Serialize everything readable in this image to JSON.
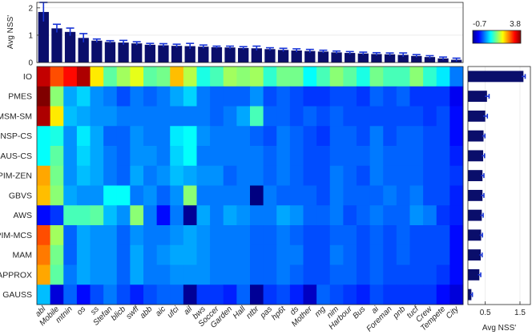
{
  "chart_data": [
    {
      "type": "bar",
      "ylabel": "Avg NSS'",
      "ylim": [
        0,
        2.2
      ],
      "yticks": [
        0,
        1,
        2
      ],
      "grid": true,
      "categories": [
        "abl",
        "Mobile",
        "mtnin",
        "os",
        "ss",
        "Stefan",
        "blicb",
        "swff",
        "abb",
        "aic",
        "ufci",
        "ail",
        "bws",
        "Soccer",
        "Garden",
        "Hall",
        "ntbr",
        "pas",
        "hp6t",
        "ds",
        "Mother",
        "mg",
        "nim",
        "Harbour",
        "Bus",
        "ai",
        "Foreman",
        "pnb",
        "tucf",
        "Crew",
        "Tempete",
        "City"
      ],
      "values": [
        1.85,
        1.25,
        1.12,
        0.9,
        0.8,
        0.75,
        0.73,
        0.7,
        0.65,
        0.63,
        0.61,
        0.6,
        0.58,
        0.56,
        0.55,
        0.53,
        0.52,
        0.49,
        0.46,
        0.44,
        0.42,
        0.4,
        0.37,
        0.35,
        0.33,
        0.31,
        0.3,
        0.28,
        0.24,
        0.2,
        0.15,
        0.1
      ],
      "errors": [
        0.35,
        0.15,
        0.14,
        0.16,
        0.06,
        0.05,
        0.08,
        0.06,
        0.05,
        0.06,
        0.06,
        0.1,
        0.06,
        0.04,
        0.05,
        0.05,
        0.08,
        0.05,
        0.06,
        0.06,
        0.06,
        0.05,
        0.05,
        0.05,
        0.05,
        0.05,
        0.05,
        0.07,
        0.05,
        0.05,
        0.05,
        0.06
      ]
    },
    {
      "type": "heatmap",
      "colorbar": {
        "min": -0.7,
        "max": 3.8,
        "min_label": "-0.7",
        "max_label": "3.8"
      },
      "rows": [
        "IO",
        "PMES",
        "MSM-SM",
        "PNSP-CS",
        "GAUS-CS",
        "PIM-ZEN",
        "GBVS",
        "AWS",
        "PIM-MCS",
        "MAM",
        "APPROX",
        "GAUSS"
      ],
      "columns": [
        "abl",
        "Mobile",
        "mtnin",
        "os",
        "ss",
        "Stefan",
        "blicb",
        "swff",
        "abb",
        "aic",
        "ufci",
        "ail",
        "bws",
        "Soccer",
        "Garden",
        "Hall",
        "ntbr",
        "pas",
        "hp6t",
        "ds",
        "Mother",
        "mg",
        "nim",
        "Harbour",
        "Bus",
        "ai",
        "Foreman",
        "pnb",
        "tucf",
        "Crew",
        "Tempete",
        "City"
      ],
      "values": [
        [
          3.5,
          2.9,
          3.2,
          3.6,
          2.2,
          1.4,
          1.7,
          2.0,
          1.4,
          1.5,
          2.4,
          1.8,
          1.1,
          1.3,
          1.7,
          1.6,
          1.7,
          1.2,
          1.5,
          1.5,
          1.0,
          1.3,
          1.6,
          1.4,
          1.1,
          1.5,
          1.3,
          1.3,
          1.6,
          1.2,
          0.9,
          0.4
        ],
        [
          3.9,
          1.6,
          0.6,
          0.8,
          0.5,
          0.4,
          0.2,
          0.4,
          0.3,
          0.4,
          0.6,
          0.8,
          0.4,
          0.3,
          0.3,
          0.3,
          0.5,
          0.2,
          0.3,
          0.2,
          0.1,
          0.1,
          0.2,
          0.2,
          0.1,
          0.3,
          0.2,
          0.3,
          0.1,
          0.1,
          0.1,
          -0.2
        ],
        [
          3.6,
          2.2,
          0.7,
          0.6,
          0.5,
          0.5,
          0.4,
          0.4,
          0.4,
          0.4,
          0.4,
          0.4,
          0.4,
          0.3,
          0.4,
          0.6,
          1.3,
          0.3,
          0.3,
          0.2,
          0.3,
          0.2,
          0.3,
          0.2,
          0.2,
          0.2,
          0.2,
          0.2,
          0.2,
          0.1,
          0.2,
          -0.1
        ],
        [
          1.0,
          1.1,
          0.5,
          0.9,
          0.6,
          0.3,
          0.3,
          0.5,
          0.4,
          0.4,
          0.9,
          1.0,
          0.5,
          0.4,
          0.4,
          0.4,
          0.3,
          0.2,
          0.4,
          0.3,
          0.2,
          0.1,
          0.3,
          0.3,
          0.2,
          0.4,
          0.2,
          0.3,
          0.3,
          0.2,
          0.2,
          -0.1
        ],
        [
          1.0,
          1.4,
          0.5,
          0.8,
          0.6,
          0.4,
          0.3,
          0.5,
          0.5,
          0.4,
          0.8,
          1.0,
          0.4,
          0.4,
          0.4,
          0.4,
          0.4,
          0.3,
          0.4,
          0.3,
          0.2,
          0.2,
          0.3,
          0.3,
          0.3,
          0.4,
          0.3,
          0.3,
          0.3,
          0.2,
          0.2,
          0.0
        ],
        [
          2.5,
          1.5,
          0.5,
          0.7,
          0.6,
          0.4,
          0.3,
          0.6,
          0.4,
          0.5,
          0.7,
          0.6,
          0.5,
          0.5,
          0.3,
          0.4,
          0.4,
          0.3,
          0.4,
          0.3,
          0.2,
          0.2,
          0.4,
          0.3,
          0.2,
          0.4,
          0.3,
          0.3,
          0.3,
          0.2,
          0.2,
          0.1
        ],
        [
          2.4,
          1.6,
          0.6,
          0.5,
          0.5,
          1.0,
          1.0,
          0.4,
          0.5,
          0.3,
          0.5,
          1.6,
          0.4,
          0.4,
          0.4,
          0.4,
          -0.7,
          0.4,
          0.3,
          0.3,
          0.3,
          0.2,
          0.4,
          0.3,
          0.3,
          0.3,
          0.4,
          0.3,
          0.4,
          0.2,
          0.2,
          0.0
        ],
        [
          -0.1,
          0.1,
          1.3,
          1.3,
          1.4,
          0.7,
          0.5,
          1.6,
          0.4,
          -0.1,
          0.4,
          -0.6,
          0.6,
          0.4,
          0.6,
          0.5,
          0.4,
          0.4,
          0.6,
          0.5,
          0.3,
          0.3,
          0.4,
          0.2,
          0.3,
          0.4,
          0.3,
          0.3,
          0.5,
          0.4,
          0.1,
          0.0
        ],
        [
          2.9,
          1.7,
          0.3,
          0.6,
          0.5,
          0.5,
          0.3,
          0.5,
          0.4,
          0.4,
          0.5,
          0.6,
          0.5,
          0.4,
          0.4,
          0.4,
          0.3,
          0.3,
          0.4,
          0.3,
          0.2,
          0.2,
          0.3,
          0.3,
          0.2,
          0.3,
          0.2,
          0.3,
          0.2,
          0.2,
          0.2,
          -0.1
        ],
        [
          2.7,
          1.5,
          0.3,
          0.6,
          0.5,
          0.5,
          0.3,
          0.6,
          0.4,
          0.5,
          0.6,
          0.6,
          0.5,
          0.4,
          0.4,
          0.4,
          0.3,
          0.3,
          0.4,
          0.4,
          0.2,
          0.2,
          0.4,
          0.3,
          0.2,
          0.3,
          0.2,
          0.3,
          0.2,
          0.2,
          0.2,
          -0.1
        ],
        [
          2.5,
          1.4,
          0.4,
          0.6,
          0.5,
          0.5,
          0.3,
          0.6,
          0.4,
          0.4,
          0.5,
          0.5,
          0.5,
          0.4,
          0.4,
          0.4,
          0.3,
          0.3,
          0.4,
          0.3,
          0.2,
          0.2,
          0.3,
          0.3,
          0.2,
          0.3,
          0.2,
          0.2,
          0.2,
          0.2,
          0.1,
          -0.1
        ],
        [
          0.7,
          -0.3,
          0.3,
          -0.1,
          0.2,
          0.4,
          0.2,
          0.0,
          0.2,
          0.3,
          0.3,
          -0.6,
          0.1,
          0.1,
          0.0,
          0.3,
          -0.6,
          0.1,
          0.2,
          0.0,
          -0.4,
          0.3,
          0.2,
          0.1,
          0.0,
          0.2,
          0.1,
          0.1,
          0.1,
          0.1,
          -0.1,
          -0.3
        ]
      ]
    },
    {
      "type": "bar",
      "orientation": "horizontal",
      "xlabel": "Avg NSS'",
      "xlim": [
        0,
        1.8
      ],
      "xticks": [
        0.5,
        1.5
      ],
      "xtick_labels": [
        "0.5",
        "1.5"
      ],
      "categories": [
        "IO",
        "PMES",
        "MSM-SM",
        "PNSP-CS",
        "GAUS-CS",
        "PIM-ZEN",
        "GBVS",
        "AWS",
        "PIM-MCS",
        "MAM",
        "APPROX",
        "GAUSS"
      ],
      "values": [
        1.6,
        0.55,
        0.5,
        0.45,
        0.44,
        0.42,
        0.42,
        0.4,
        0.38,
        0.37,
        0.33,
        0.1
      ],
      "errors": [
        0.05,
        0.06,
        0.06,
        0.04,
        0.04,
        0.04,
        0.04,
        0.04,
        0.04,
        0.04,
        0.04,
        0.03
      ]
    }
  ]
}
